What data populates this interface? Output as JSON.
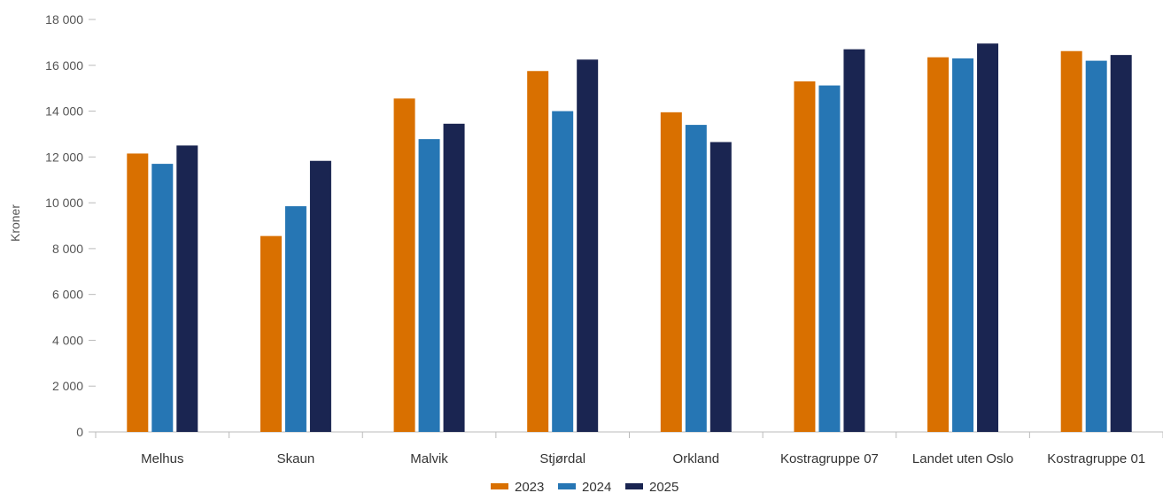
{
  "chart_data": {
    "type": "bar",
    "title": "",
    "xlabel": "",
    "ylabel": "Kroner",
    "ylim": [
      0,
      18000
    ],
    "yticks": [
      0,
      2000,
      4000,
      6000,
      8000,
      10000,
      12000,
      14000,
      16000,
      18000
    ],
    "ytick_labels": [
      "0",
      "2 000",
      "4 000",
      "6 000",
      "8 000",
      "10 000",
      "12 000",
      "14 000",
      "16 000",
      "18 000"
    ],
    "grid": false,
    "legend_position": "bottom-center",
    "categories": [
      "Melhus",
      "Skaun",
      "Malvik",
      "Stjørdal",
      "Orkland",
      "Kostragruppe 07",
      "Landet uten Oslo",
      "Kostragruppe 01"
    ],
    "series": [
      {
        "name": "2023",
        "color": "#d97000",
        "values": [
          12150,
          8550,
          14550,
          15750,
          13950,
          15300,
          16350,
          16620
        ]
      },
      {
        "name": "2024",
        "color": "#2676b4",
        "values": [
          11700,
          9850,
          12780,
          14000,
          13400,
          15120,
          16300,
          16200
        ]
      },
      {
        "name": "2025",
        "color": "#1a2551",
        "values": [
          12500,
          11830,
          13450,
          16250,
          12650,
          16700,
          16950,
          16450
        ]
      }
    ]
  }
}
